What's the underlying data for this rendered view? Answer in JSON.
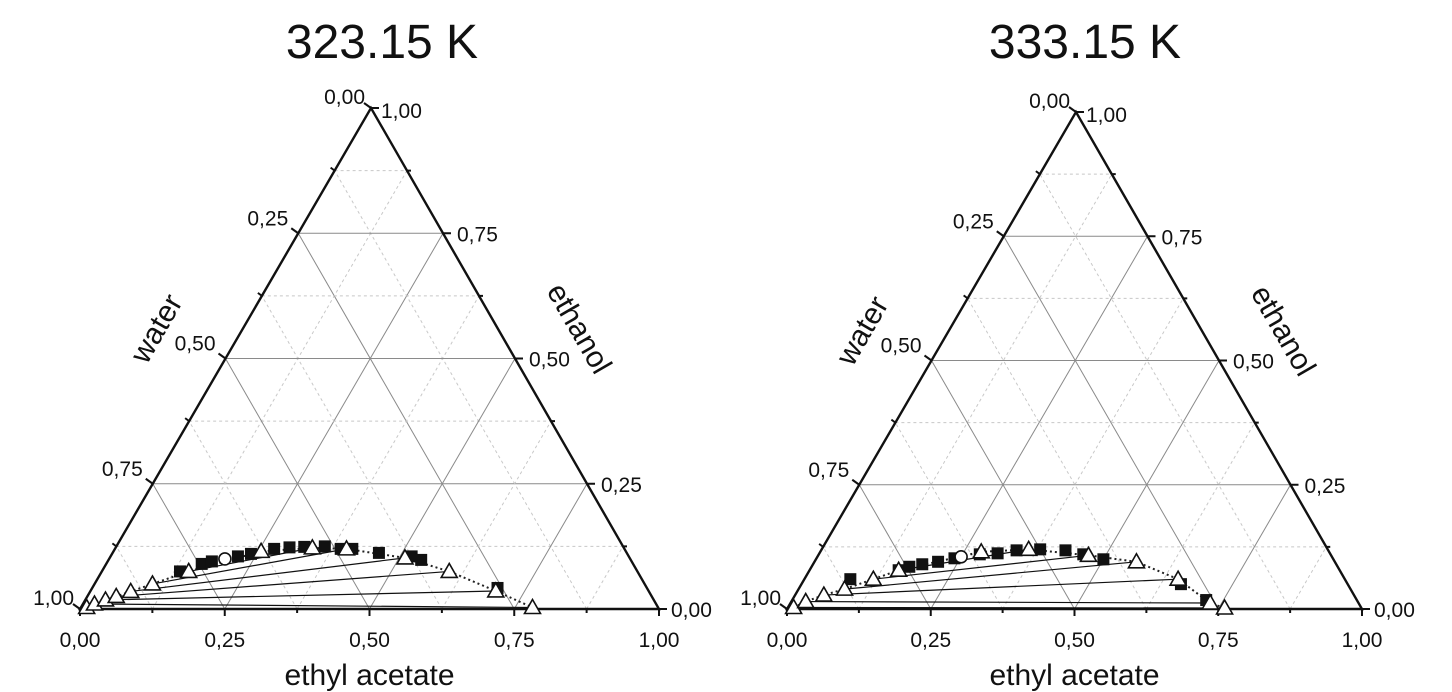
{
  "chart_data": [
    {
      "type": "scatter",
      "subtype": "ternary",
      "title": "323.15 K",
      "axes": {
        "bottom": "ethyl acetate",
        "left": "water",
        "right": "ethanol"
      },
      "tick_labels": {
        "bottom": [
          "0,00",
          "0,25",
          "0,50",
          "0,75",
          "1,00"
        ],
        "left": [
          "0,25",
          "0,50",
          "0,75",
          "1,00"
        ],
        "right": [
          "0,25",
          "0,50",
          "0,75",
          "1,00"
        ],
        "apex_left": "0,00",
        "right_end": "0,00"
      },
      "coordinate_note": "points given as [ethyl acetate, ethanol] mole fractions",
      "series": [
        {
          "name": "",
          "marker": "filled-square",
          "points": [
            [
              0.135,
              0.075
            ],
            [
              0.165,
              0.09
            ],
            [
              0.18,
              0.095
            ],
            [
              0.22,
              0.105
            ],
            [
              0.24,
              0.11
            ],
            [
              0.275,
              0.12
            ],
            [
              0.3,
              0.123
            ],
            [
              0.325,
              0.124
            ],
            [
              0.36,
              0.125
            ],
            [
              0.39,
              0.12
            ],
            [
              0.41,
              0.12
            ],
            [
              0.46,
              0.112
            ],
            [
              0.52,
              0.105
            ],
            [
              0.54,
              0.098
            ],
            [
              0.7,
              0.042
            ]
          ]
        },
        {
          "name": "",
          "marker": "open-triangle",
          "points": [
            [
              0.01,
              0.003
            ],
            [
              0.02,
              0.01
            ],
            [
              0.035,
              0.018
            ],
            [
              0.05,
              0.025
            ],
            [
              0.07,
              0.035
            ],
            [
              0.1,
              0.05
            ],
            [
              0.15,
              0.075
            ],
            [
              0.255,
              0.115
            ],
            [
              0.34,
              0.122
            ],
            [
              0.4,
              0.12
            ],
            [
              0.51,
              0.102
            ],
            [
              0.6,
              0.075
            ],
            [
              0.7,
              0.036
            ],
            [
              0.78,
              0.003
            ]
          ]
        },
        {
          "name": "",
          "marker": "open-circle",
          "points": [
            [
              0.2,
              0.1
            ]
          ]
        }
      ],
      "tie_lines": [
        [
          [
            0.02,
            0.01
          ],
          [
            0.78,
            0.003
          ]
        ],
        [
          [
            0.035,
            0.018
          ],
          [
            0.7,
            0.036
          ]
        ],
        [
          [
            0.05,
            0.025
          ],
          [
            0.6,
            0.075
          ]
        ],
        [
          [
            0.07,
            0.035
          ],
          [
            0.51,
            0.102
          ]
        ],
        [
          [
            0.1,
            0.05
          ],
          [
            0.4,
            0.12
          ]
        ],
        [
          [
            0.15,
            0.075
          ],
          [
            0.34,
            0.122
          ]
        ]
      ]
    },
    {
      "type": "scatter",
      "subtype": "ternary",
      "title": "333.15 K",
      "axes": {
        "bottom": "ethyl acetate",
        "left": "water",
        "right": "ethanol"
      },
      "tick_labels": {
        "bottom": [
          "0,00",
          "0,25",
          "0,50",
          "0,75",
          "1,00"
        ],
        "left": [
          "0,25",
          "0,50",
          "0,75",
          "1,00"
        ],
        "right": [
          "0,25",
          "0,50",
          "0,75",
          "1,00"
        ],
        "apex_left": "0,00",
        "right_end": "0,00"
      },
      "coordinate_note": "points given as [ethyl acetate, ethanol] mole fractions",
      "series": [
        {
          "name": "",
          "marker": "filled-square",
          "points": [
            [
              0.08,
              0.06
            ],
            [
              0.155,
              0.078
            ],
            [
              0.17,
              0.085
            ],
            [
              0.19,
              0.09
            ],
            [
              0.215,
              0.095
            ],
            [
              0.24,
              0.102
            ],
            [
              0.28,
              0.11
            ],
            [
              0.31,
              0.112
            ],
            [
              0.34,
              0.118
            ],
            [
              0.38,
              0.12
            ],
            [
              0.425,
              0.118
            ],
            [
              0.46,
              0.11
            ],
            [
              0.5,
              0.1
            ],
            [
              0.66,
              0.05
            ],
            [
              0.72,
              0.018
            ]
          ]
        },
        {
          "name": "",
          "marker": "open-triangle",
          "points": [
            [
              0.01,
              0.003
            ],
            [
              0.025,
              0.015
            ],
            [
              0.05,
              0.028
            ],
            [
              0.08,
              0.04
            ],
            [
              0.12,
              0.06
            ],
            [
              0.155,
              0.078
            ],
            [
              0.28,
              0.115
            ],
            [
              0.36,
              0.12
            ],
            [
              0.47,
              0.108
            ],
            [
              0.56,
              0.095
            ],
            [
              0.65,
              0.06
            ],
            [
              0.73,
              0.012
            ],
            [
              0.76,
              0.002
            ]
          ]
        },
        {
          "name": "",
          "marker": "open-circle",
          "points": [
            [
              0.25,
              0.105
            ]
          ]
        }
      ],
      "tie_lines": [
        [
          [
            0.01,
            0.003
          ],
          [
            0.76,
            0.002
          ]
        ],
        [
          [
            0.025,
            0.015
          ],
          [
            0.73,
            0.012
          ]
        ],
        [
          [
            0.05,
            0.028
          ],
          [
            0.65,
            0.06
          ]
        ],
        [
          [
            0.08,
            0.04
          ],
          [
            0.56,
            0.095
          ]
        ],
        [
          [
            0.12,
            0.06
          ],
          [
            0.47,
            0.108
          ]
        ],
        [
          [
            0.155,
            0.078
          ],
          [
            0.36,
            0.12
          ]
        ]
      ]
    }
  ]
}
